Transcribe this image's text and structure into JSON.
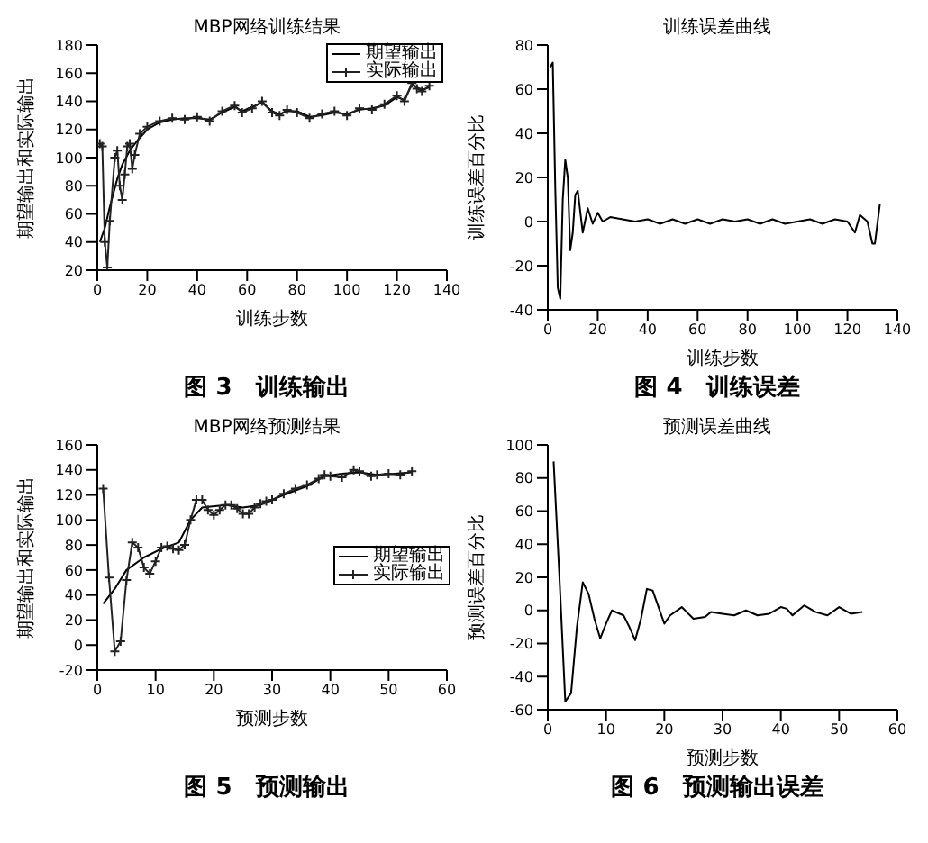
{
  "chart_data": [
    {
      "type": "line",
      "title": "MBP网络训练结果",
      "xlabel": "训练步数",
      "ylabel": "期望输出和实际输出",
      "xlim": [
        0,
        140
      ],
      "xticks": [
        0,
        20,
        40,
        60,
        80,
        100,
        120,
        140
      ],
      "ylim": [
        20,
        180
      ],
      "yticks": [
        20,
        40,
        60,
        80,
        100,
        120,
        140,
        160,
        180
      ],
      "legend": "top right",
      "annotations": [
        "图 3　训练输出"
      ],
      "series": [
        {
          "name": "期望输出",
          "color": "#000000",
          "marker": "none",
          "x": [
            1,
            3,
            5,
            8,
            10,
            13,
            16,
            20,
            25,
            30,
            35,
            40,
            45,
            50,
            55,
            58,
            62,
            66,
            70,
            73,
            76,
            80,
            85,
            90,
            95,
            100,
            105,
            110,
            115,
            120,
            123,
            126,
            128,
            130,
            133
          ],
          "values": [
            40,
            50,
            65,
            85,
            95,
            105,
            112,
            120,
            125,
            127,
            128,
            128,
            127,
            132,
            136,
            133,
            136,
            139,
            133,
            131,
            133,
            133,
            129,
            130,
            132,
            131,
            134,
            135,
            137,
            143,
            141,
            152,
            150,
            148,
            150
          ]
        },
        {
          "name": "实际输出",
          "color": "#222222",
          "marker": "cross",
          "x": [
            1,
            2,
            3,
            4,
            5,
            7,
            8,
            9,
            10,
            11,
            12,
            13,
            14,
            15,
            17,
            20,
            25,
            30,
            35,
            40,
            45,
            50,
            55,
            58,
            62,
            66,
            70,
            73,
            76,
            80,
            85,
            90,
            95,
            100,
            105,
            110,
            115,
            120,
            123,
            126,
            128,
            130,
            133
          ],
          "values": [
            110,
            108,
            40,
            22,
            55,
            100,
            105,
            80,
            70,
            88,
            108,
            110,
            92,
            102,
            117,
            122,
            126,
            128,
            127,
            129,
            126,
            133,
            137,
            132,
            135,
            140,
            132,
            130,
            134,
            132,
            128,
            131,
            133,
            130,
            135,
            134,
            138,
            144,
            140,
            153,
            149,
            147,
            151
          ]
        }
      ]
    },
    {
      "type": "line",
      "title": "训练误差曲线",
      "xlabel": "训练步数",
      "ylabel": "训练误差百分比",
      "xlim": [
        0,
        140
      ],
      "xticks": [
        0,
        20,
        40,
        60,
        80,
        100,
        120,
        140
      ],
      "ylim": [
        -40,
        80
      ],
      "yticks": [
        -40,
        -20,
        0,
        20,
        40,
        60,
        80
      ],
      "legend": false,
      "annotations": [
        "图 4　训练误差"
      ],
      "series": [
        {
          "color": "#000000",
          "marker": "none",
          "x": [
            1,
            2,
            3,
            4,
            5,
            6,
            7,
            8,
            9,
            10,
            11,
            12,
            14,
            16,
            18,
            20,
            22,
            25,
            30,
            35,
            40,
            45,
            50,
            55,
            60,
            65,
            70,
            75,
            80,
            85,
            90,
            95,
            100,
            105,
            110,
            115,
            120,
            123,
            125,
            128,
            130,
            131,
            133
          ],
          "values": [
            70,
            72,
            15,
            -30,
            -35,
            10,
            28,
            20,
            -13,
            -5,
            12,
            14,
            -5,
            6,
            -1,
            4,
            0,
            2,
            1,
            0,
            1,
            -1,
            1,
            -1,
            1,
            -1,
            1,
            0,
            1,
            -1,
            1,
            -1,
            0,
            1,
            -1,
            1,
            0,
            -5,
            3,
            0,
            -10,
            -10,
            8
          ]
        }
      ]
    },
    {
      "type": "line",
      "title": "MBP网络预测结果",
      "xlabel": "预测步数",
      "ylabel": "期望输出和实际输出",
      "xlim": [
        0,
        60
      ],
      "xticks": [
        0,
        10,
        20,
        30,
        40,
        50,
        60
      ],
      "ylim": [
        -20,
        160
      ],
      "yticks": [
        -20,
        0,
        20,
        40,
        60,
        80,
        100,
        120,
        140,
        160
      ],
      "legend": "right",
      "annotations": [
        "图 5　预测输出"
      ],
      "series": [
        {
          "name": "期望输出",
          "color": "#000000",
          "marker": "none",
          "x": [
            1,
            3,
            5,
            8,
            11,
            14,
            16,
            18,
            22,
            25,
            28,
            32,
            36,
            39,
            42,
            45,
            48,
            51,
            54
          ],
          "values": [
            33,
            45,
            60,
            70,
            77,
            82,
            100,
            110,
            112,
            110,
            112,
            120,
            127,
            135,
            137,
            138,
            136,
            137,
            138
          ]
        },
        {
          "name": "实际输出",
          "color": "#222222",
          "marker": "cross",
          "x": [
            1,
            2,
            3,
            4,
            5,
            6,
            7,
            8,
            9,
            10,
            11,
            12,
            13,
            14,
            15,
            16,
            17,
            18,
            19,
            20,
            21,
            22,
            23,
            24,
            25,
            26,
            27,
            28,
            29,
            30,
            32,
            34,
            36,
            38,
            39,
            40,
            42,
            44,
            45,
            47,
            48,
            50,
            52,
            54
          ],
          "values": [
            125,
            54,
            -5,
            3,
            52,
            82,
            78,
            62,
            57,
            67,
            78,
            79,
            77,
            76,
            80,
            100,
            116,
            116,
            108,
            104,
            108,
            112,
            112,
            109,
            105,
            105,
            110,
            113,
            115,
            116,
            121,
            125,
            128,
            133,
            136,
            135,
            134,
            140,
            139,
            135,
            136,
            137,
            136,
            139
          ]
        }
      ]
    },
    {
      "type": "line",
      "title": "预测误差曲线",
      "xlabel": "预测步数",
      "ylabel": "预测误差百分比",
      "xlim": [
        0,
        60
      ],
      "xticks": [
        0,
        10,
        20,
        30,
        40,
        50,
        60
      ],
      "ylim": [
        -60,
        100
      ],
      "yticks": [
        -60,
        -40,
        -20,
        0,
        20,
        40,
        60,
        80,
        100
      ],
      "legend": false,
      "annotations": [
        "图 6　预测输出误差"
      ],
      "series": [
        {
          "color": "#000000",
          "marker": "none",
          "x": [
            1,
            2,
            3,
            4,
            5,
            6,
            7,
            8,
            9,
            10,
            11,
            13,
            14,
            15,
            16,
            17,
            18,
            20,
            21,
            23,
            25,
            27,
            28,
            30,
            32,
            34,
            36,
            38,
            40,
            41,
            42,
            44,
            46,
            48,
            50,
            52,
            54
          ],
          "values": [
            90,
            20,
            -55,
            -50,
            -10,
            17,
            10,
            -5,
            -17,
            -8,
            0,
            -3,
            -10,
            -18,
            -5,
            13,
            12,
            -8,
            -3,
            2,
            -5,
            -4,
            -1,
            -2,
            -3,
            0,
            -3,
            -2,
            2,
            1,
            -3,
            3,
            -1,
            -3,
            2,
            -2,
            -1
          ]
        }
      ]
    }
  ]
}
